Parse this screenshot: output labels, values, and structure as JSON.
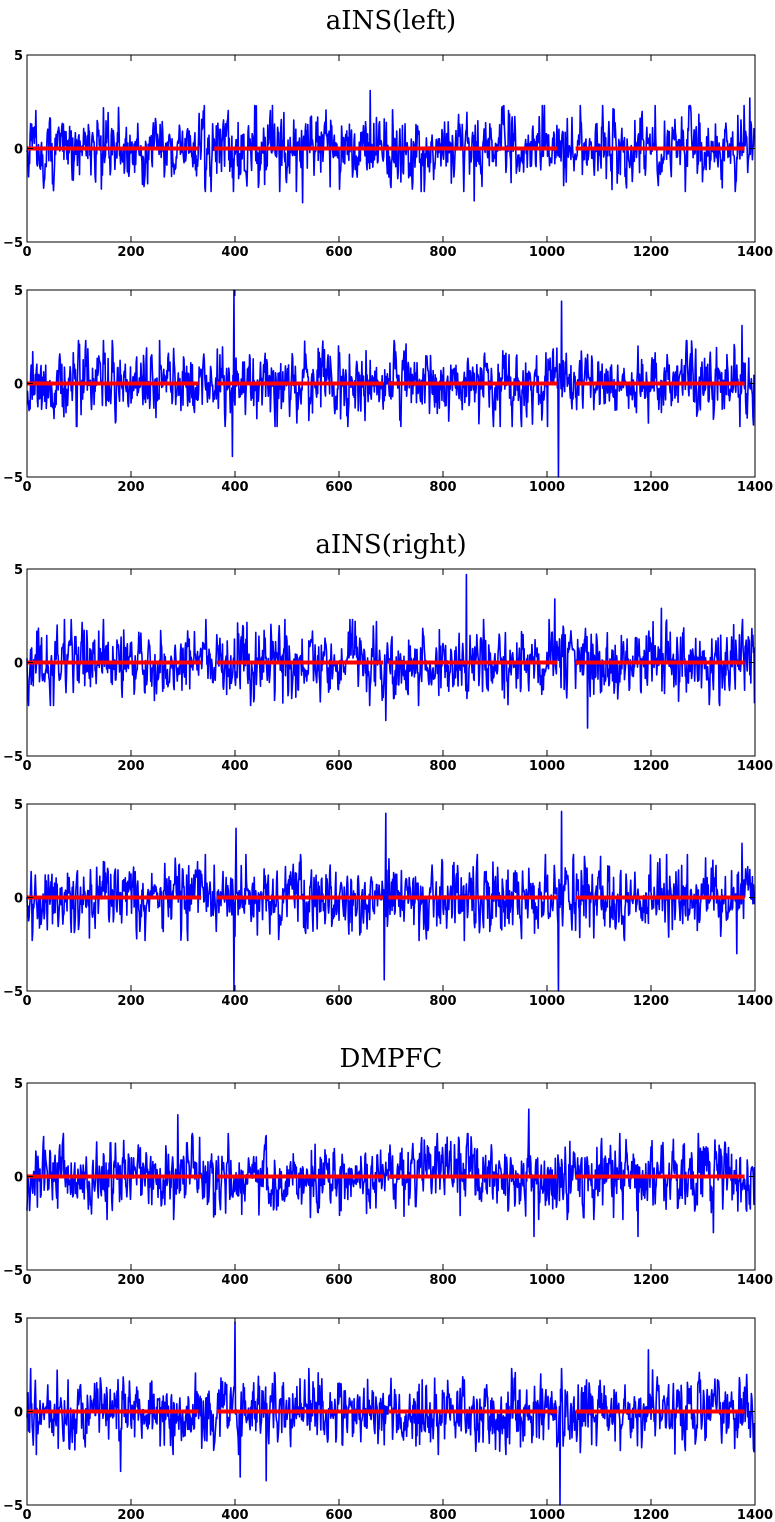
{
  "chart_data": [
    {
      "type": "line",
      "title": "aINS(left)",
      "xlim": [
        0,
        1400
      ],
      "ylim": [
        -5,
        5
      ],
      "xticks": [
        0,
        200,
        400,
        600,
        800,
        1000,
        1200,
        1400
      ],
      "yticks": [
        -5,
        0,
        5
      ],
      "x_tick_labels": [
        "0",
        "200",
        "400",
        "600",
        "800",
        "1000",
        "1200",
        "1400"
      ],
      "y_tick_labels": [
        "−5",
        "0",
        "5"
      ],
      "series": [
        {
          "color": "#0000ff",
          "length": 1400,
          "amplitude": 0.85,
          "spikes": [
            {
              "x": 660,
              "y": 3.1
            },
            {
              "x": 530,
              "y": -2.9
            },
            {
              "x": 860,
              "y": -2.8
            },
            {
              "x": 1390,
              "y": 2.7
            }
          ]
        },
        {
          "color": "#ff0000",
          "value": 0,
          "segments": [
            [
              0,
              330
            ],
            [
              360,
              1020
            ],
            [
              1055,
              1380
            ]
          ]
        }
      ]
    },
    {
      "type": "line",
      "title": "",
      "xlim": [
        0,
        1400
      ],
      "ylim": [
        -5,
        5
      ],
      "xticks": [
        0,
        200,
        400,
        600,
        800,
        1000,
        1200,
        1400
      ],
      "yticks": [
        -5,
        0,
        5
      ],
      "x_tick_labels": [
        "0",
        "200",
        "400",
        "600",
        "800",
        "1000",
        "1200",
        "1400"
      ],
      "y_tick_labels": [
        "−5",
        "0",
        "5"
      ],
      "series": [
        {
          "color": "#0000ff",
          "length": 1400,
          "amplitude": 0.85,
          "spikes": [
            {
              "x": 398,
              "y": 5.0
            },
            {
              "x": 395,
              "y": -3.9
            },
            {
              "x": 1028,
              "y": 4.4
            },
            {
              "x": 1022,
              "y": -5.0
            },
            {
              "x": 1375,
              "y": 3.1
            }
          ]
        },
        {
          "color": "#ff0000",
          "value": 0,
          "segments": [
            [
              0,
              330
            ],
            [
              365,
              685
            ],
            [
              695,
              1020
            ],
            [
              1055,
              1380
            ]
          ]
        }
      ]
    },
    {
      "type": "line",
      "title": "aINS(right)",
      "xlim": [
        0,
        1400
      ],
      "ylim": [
        -5,
        5
      ],
      "xticks": [
        0,
        200,
        400,
        600,
        800,
        1000,
        1200,
        1400
      ],
      "yticks": [
        -5,
        0,
        5
      ],
      "x_tick_labels": [
        "0",
        "200",
        "400",
        "600",
        "800",
        "1000",
        "1200",
        "1400"
      ],
      "y_tick_labels": [
        "−5",
        "0",
        "5"
      ],
      "series": [
        {
          "color": "#0000ff",
          "length": 1400,
          "amplitude": 0.85,
          "spikes": [
            {
              "x": 845,
              "y": 4.7
            },
            {
              "x": 1015,
              "y": 3.4
            },
            {
              "x": 1078,
              "y": -3.5
            },
            {
              "x": 690,
              "y": -3.1
            },
            {
              "x": 1220,
              "y": 2.9
            }
          ]
        },
        {
          "color": "#ff0000",
          "value": 0,
          "segments": [
            [
              0,
              335
            ],
            [
              365,
              685
            ],
            [
              695,
              1020
            ],
            [
              1055,
              1380
            ]
          ]
        }
      ]
    },
    {
      "type": "line",
      "title": "",
      "xlim": [
        0,
        1400
      ],
      "ylim": [
        -5,
        5
      ],
      "xticks": [
        0,
        200,
        400,
        600,
        800,
        1000,
        1200,
        1400
      ],
      "yticks": [
        -5,
        0,
        5
      ],
      "x_tick_labels": [
        "0",
        "200",
        "400",
        "600",
        "800",
        "1000",
        "1200",
        "1400"
      ],
      "y_tick_labels": [
        "−5",
        "0",
        "5"
      ],
      "series": [
        {
          "color": "#0000ff",
          "length": 1400,
          "amplitude": 0.85,
          "spikes": [
            {
              "x": 398,
              "y": -5.0
            },
            {
              "x": 402,
              "y": 3.7
            },
            {
              "x": 690,
              "y": 4.5
            },
            {
              "x": 687,
              "y": -4.4
            },
            {
              "x": 1028,
              "y": 4.6
            },
            {
              "x": 1022,
              "y": -5.0
            },
            {
              "x": 1375,
              "y": 2.9
            },
            {
              "x": 1365,
              "y": -3.0
            }
          ]
        },
        {
          "color": "#ff0000",
          "value": 0,
          "segments": [
            [
              0,
              335
            ],
            [
              365,
              685
            ],
            [
              695,
              1020
            ],
            [
              1055,
              1380
            ]
          ]
        }
      ]
    },
    {
      "type": "line",
      "title": "DMPFC",
      "xlim": [
        0,
        1400
      ],
      "ylim": [
        -5,
        5
      ],
      "xticks": [
        0,
        200,
        400,
        600,
        800,
        1000,
        1200,
        1400
      ],
      "yticks": [
        -5,
        0,
        5
      ],
      "x_tick_labels": [
        "0",
        "200",
        "400",
        "600",
        "800",
        "1000",
        "1200",
        "1400"
      ],
      "y_tick_labels": [
        "−5",
        "0",
        "5"
      ],
      "series": [
        {
          "color": "#0000ff",
          "length": 1400,
          "amplitude": 0.85,
          "spikes": [
            {
              "x": 290,
              "y": 3.3
            },
            {
              "x": 965,
              "y": 3.6
            },
            {
              "x": 975,
              "y": -3.2
            },
            {
              "x": 1175,
              "y": -3.2
            },
            {
              "x": 1320,
              "y": -3.0
            }
          ]
        },
        {
          "color": "#ff0000",
          "value": 0,
          "segments": [
            [
              0,
              335
            ],
            [
              365,
              685
            ],
            [
              695,
              1020
            ],
            [
              1055,
              1380
            ]
          ]
        }
      ]
    },
    {
      "type": "line",
      "title": "",
      "xlim": [
        0,
        1400
      ],
      "ylim": [
        -5,
        5
      ],
      "xticks": [
        0,
        200,
        400,
        600,
        800,
        1000,
        1200,
        1400
      ],
      "yticks": [
        -5,
        0,
        5
      ],
      "x_tick_labels": [
        "0",
        "200",
        "400",
        "600",
        "800",
        "1000",
        "1200",
        "1400"
      ],
      "y_tick_labels": [
        "−5",
        "0",
        "5"
      ],
      "series": [
        {
          "color": "#0000ff",
          "length": 1400,
          "amplitude": 0.85,
          "spikes": [
            {
              "x": 400,
              "y": 4.8
            },
            {
              "x": 410,
              "y": -3.5
            },
            {
              "x": 460,
              "y": -3.7
            },
            {
              "x": 180,
              "y": -3.2
            },
            {
              "x": 1025,
              "y": -5.0
            },
            {
              "x": 1195,
              "y": 3.3
            }
          ]
        },
        {
          "color": "#ff0000",
          "value": 0,
          "segments": [
            [
              0,
              330
            ],
            [
              365,
              685
            ],
            [
              695,
              1020
            ],
            [
              1055,
              1380
            ]
          ]
        }
      ]
    }
  ]
}
